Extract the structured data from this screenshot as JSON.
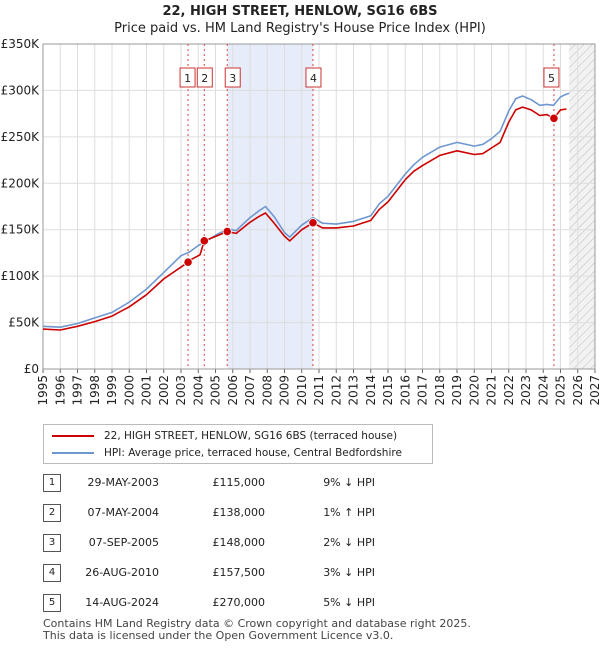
{
  "title": "22, HIGH STREET, HENLOW, SG16 6BS",
  "subtitle": "Price paid vs. HM Land Registry's House Price Index (HPI)",
  "colors": {
    "property": "#cc0000",
    "hpi": "#6f97cf",
    "shade": "#e6ecf9",
    "marker_line": "#dd4444"
  },
  "chart_data": {
    "type": "line",
    "ylim": [
      0,
      350000
    ],
    "xlim": [
      1995,
      2027
    ],
    "y_ticks": [
      0,
      50000,
      100000,
      150000,
      200000,
      250000,
      300000,
      350000
    ],
    "y_tick_labels": [
      "£0",
      "£50K",
      "£100K",
      "£150K",
      "£200K",
      "£250K",
      "£300K",
      "£350K"
    ],
    "x_ticks": [
      "1995",
      "1996",
      "1997",
      "1998",
      "1999",
      "2000",
      "2001",
      "2002",
      "2003",
      "2004",
      "2005",
      "2006",
      "2007",
      "2008",
      "2009",
      "2010",
      "2011",
      "2012",
      "2013",
      "2014",
      "2015",
      "2016",
      "2017",
      "2018",
      "2019",
      "2020",
      "2021",
      "2022",
      "2023",
      "2024",
      "2025",
      "2026",
      "2027"
    ],
    "shaded_span": [
      2005.7,
      2010.65
    ],
    "forecast_from": 2025.5,
    "series": [
      {
        "name": "22, HIGH STREET, HENLOW, SG16 6BS (terraced house)",
        "x": [
          1995,
          1996,
          1997,
          1998,
          1999,
          2000,
          2001,
          2002,
          2003.41,
          2003.6,
          2004.1,
          2004.35,
          2004.9,
          2005.68,
          2006.2,
          2007,
          2007.5,
          2007.9,
          2008.4,
          2009.0,
          2009.3,
          2010.0,
          2010.65,
          2011.2,
          2012,
          2013,
          2014,
          2014.5,
          2015,
          2016,
          2016.5,
          2017,
          2018,
          2019,
          2020,
          2020.5,
          2021,
          2021.5,
          2022,
          2022.4,
          2022.8,
          2023.3,
          2023.8,
          2024.2,
          2024.62,
          2025.0,
          2025.35
        ],
        "values": [
          43000,
          42000,
          46000,
          51000,
          57000,
          67000,
          80000,
          97000,
          115000,
          118000,
          123000,
          138000,
          142000,
          148000,
          146000,
          158000,
          164000,
          168000,
          157000,
          143000,
          138000,
          150000,
          157500,
          152000,
          152000,
          154000,
          160000,
          172000,
          180000,
          204000,
          213000,
          219000,
          230000,
          235000,
          231000,
          232000,
          238000,
          244000,
          266000,
          279000,
          282000,
          279000,
          273000,
          274000,
          270000,
          279000,
          280000
        ]
      },
      {
        "name": "HPI: Average price, terraced house, Central Bedfordshire",
        "x": [
          1995,
          1996,
          1997,
          1998,
          1999,
          2000,
          2001,
          2002,
          2003,
          2003.5,
          2004,
          2004.5,
          2005,
          2005.7,
          2006.2,
          2007,
          2007.5,
          2007.9,
          2008.4,
          2009.0,
          2009.3,
          2010.0,
          2010.65,
          2011.2,
          2012,
          2013,
          2014,
          2014.5,
          2015,
          2016,
          2016.5,
          2017,
          2018,
          2019,
          2020,
          2020.5,
          2021,
          2021.5,
          2022,
          2022.4,
          2022.8,
          2023.3,
          2023.8,
          2024.2,
          2024.6,
          2025.0,
          2025.35,
          2025.5
        ],
        "values": [
          46000,
          45000,
          49000,
          55000,
          61000,
          72000,
          86000,
          104000,
          122000,
          126000,
          133000,
          138000,
          144000,
          151000,
          149000,
          163000,
          170000,
          175000,
          164000,
          147000,
          142000,
          155000,
          163000,
          157000,
          156000,
          159000,
          165000,
          178000,
          186000,
          210000,
          220000,
          228000,
          239000,
          244000,
          240000,
          242000,
          248000,
          256000,
          278000,
          291000,
          294000,
          290000,
          284000,
          285000,
          284000,
          293000,
          296000,
          297000
        ]
      }
    ],
    "sales": [
      {
        "n": "1",
        "x": 2003.41,
        "y": 115000
      },
      {
        "n": "2",
        "x": 2004.35,
        "y": 138000
      },
      {
        "n": "3",
        "x": 2005.68,
        "y": 148000
      },
      {
        "n": "4",
        "x": 2010.65,
        "y": 157500
      },
      {
        "n": "5",
        "x": 2024.62,
        "y": 270000
      }
    ]
  },
  "legend": {
    "property": "22, HIGH STREET, HENLOW, SG16 6BS (terraced house)",
    "hpi": "HPI: Average price, terraced house, Central Bedfordshire"
  },
  "sales_table": [
    {
      "n": "1",
      "date": "29-MAY-2003",
      "price": "£115,000",
      "hpi": "9% ↓ HPI"
    },
    {
      "n": "2",
      "date": "07-MAY-2004",
      "price": "£138,000",
      "hpi": "1% ↑ HPI"
    },
    {
      "n": "3",
      "date": "07-SEP-2005",
      "price": "£148,000",
      "hpi": "2% ↓ HPI"
    },
    {
      "n": "4",
      "date": "26-AUG-2010",
      "price": "£157,500",
      "hpi": "3% ↓ HPI"
    },
    {
      "n": "5",
      "date": "14-AUG-2024",
      "price": "£270,000",
      "hpi": "5% ↓ HPI"
    }
  ],
  "footer": {
    "line1": "Contains HM Land Registry data © Crown copyright and database right 2025.",
    "line2": "This data is licensed under the Open Government Licence v3.0."
  }
}
